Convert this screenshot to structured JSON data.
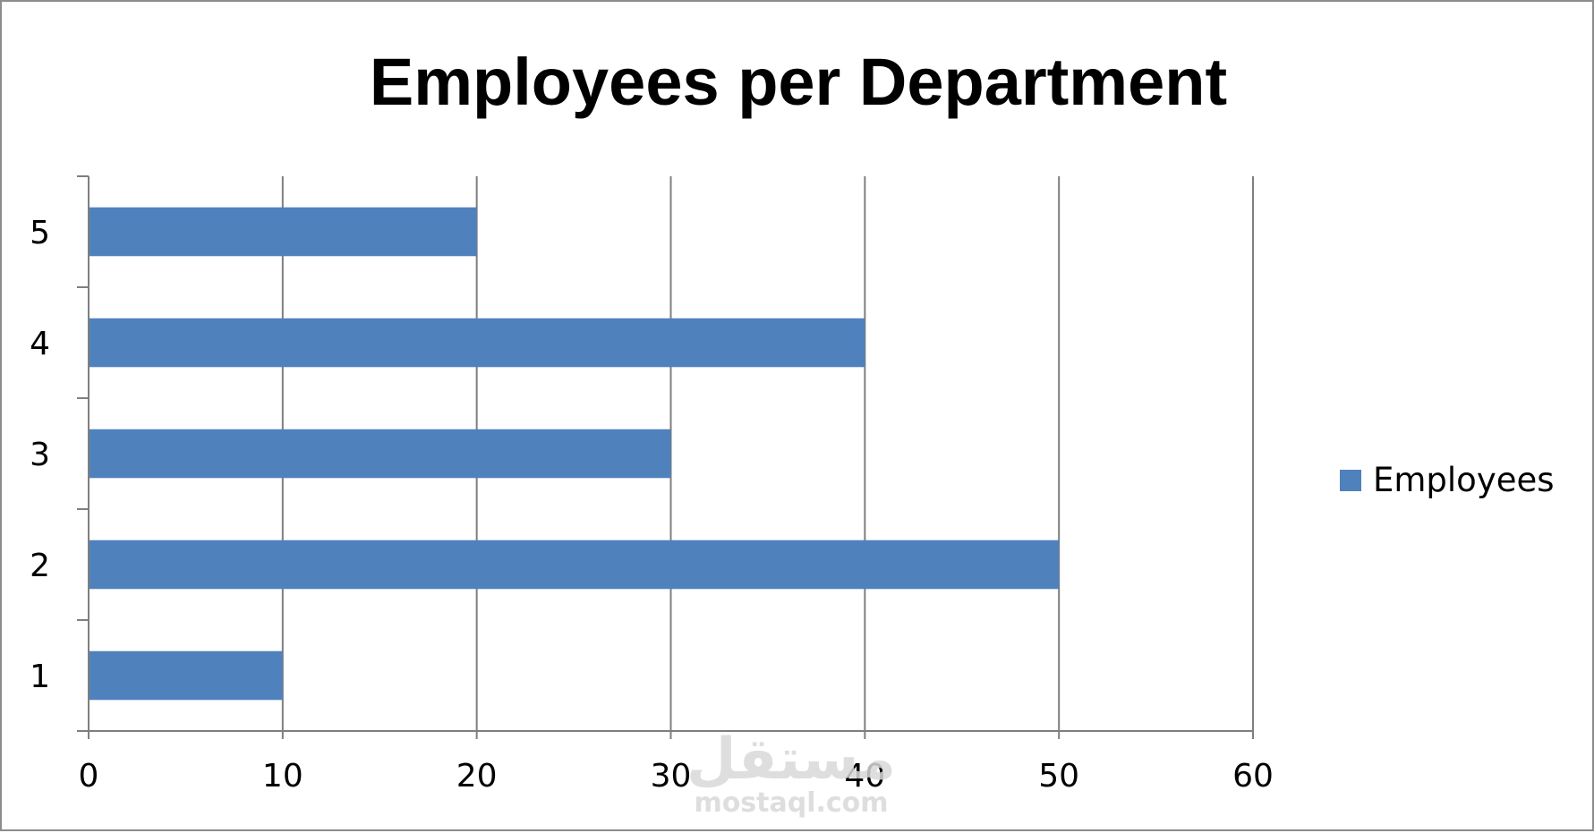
{
  "chart_data": {
    "type": "bar",
    "orientation": "horizontal",
    "title": "Employees per Department",
    "categories": [
      "1",
      "2",
      "3",
      "4",
      "5"
    ],
    "series": [
      {
        "name": "Employees",
        "values": [
          10,
          50,
          30,
          40,
          20
        ],
        "color": "#4f81bd"
      }
    ],
    "xlim": [
      0,
      60
    ],
    "x_ticks": [
      "0",
      "10",
      "20",
      "30",
      "40",
      "50",
      "60"
    ],
    "grid": "vertical",
    "legend_position": "right"
  },
  "watermark": {
    "arabic": "مستقل",
    "latin": "mostaql.com"
  },
  "colors": {
    "bar": "#4f81bd",
    "grid": "#7f7f7f",
    "border": "#8c8c8c",
    "watermark": "#d9d9d9"
  }
}
